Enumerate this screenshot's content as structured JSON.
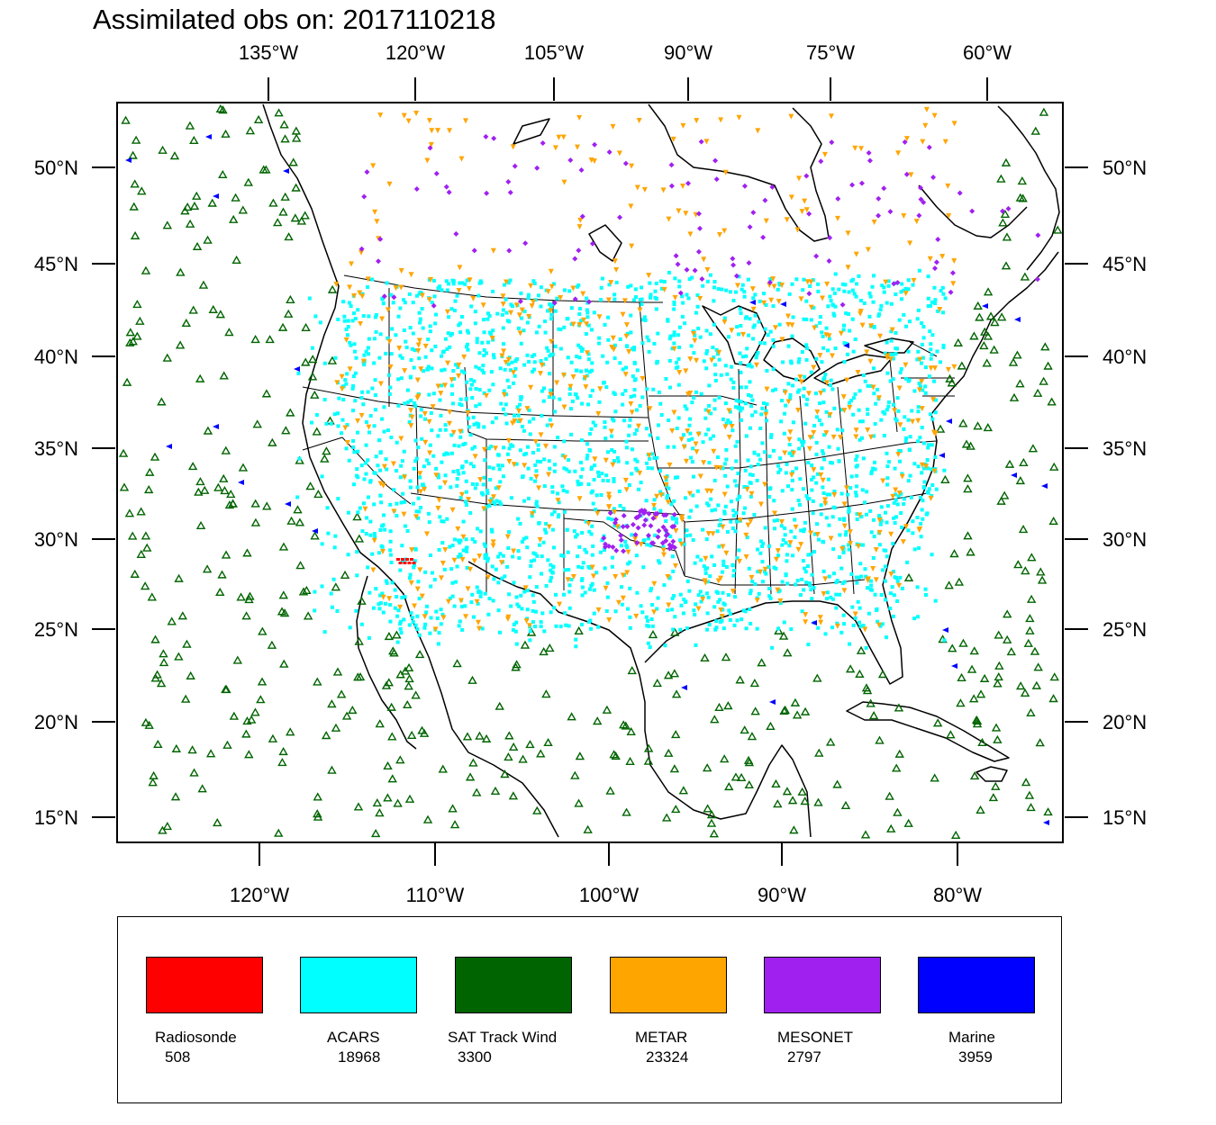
{
  "title": "Assimilated obs on: 2017110218",
  "map": {
    "top_lon_labels": [
      "135°W",
      "120°W",
      "105°W",
      "90°W",
      "75°W",
      "60°W"
    ],
    "bottom_lon_labels": [
      "120°W",
      "110°W",
      "100°W",
      "90°W",
      "80°W"
    ],
    "left_lat_labels": [
      "50°N",
      "45°N",
      "40°N",
      "35°N",
      "30°N",
      "25°N",
      "20°N",
      "15°N"
    ],
    "right_lat_labels": [
      "50°N",
      "45°N",
      "40°N",
      "35°N",
      "30°N",
      "25°N",
      "20°N",
      "15°N"
    ]
  },
  "legend": [
    {
      "name": "Radiosonde",
      "count": "508",
      "color": "#ff0000"
    },
    {
      "name": "ACARS",
      "count": "18968",
      "color": "#00ffff"
    },
    {
      "name": "SAT Track Wind",
      "count": "3300",
      "color": "#006400"
    },
    {
      "name": "METAR",
      "count": "23324",
      "color": "#ffa500"
    },
    {
      "name": "MESONET",
      "count": "2797",
      "color": "#a020f0"
    },
    {
      "name": "Marine",
      "count": "3959",
      "color": "#0000ff"
    }
  ]
}
